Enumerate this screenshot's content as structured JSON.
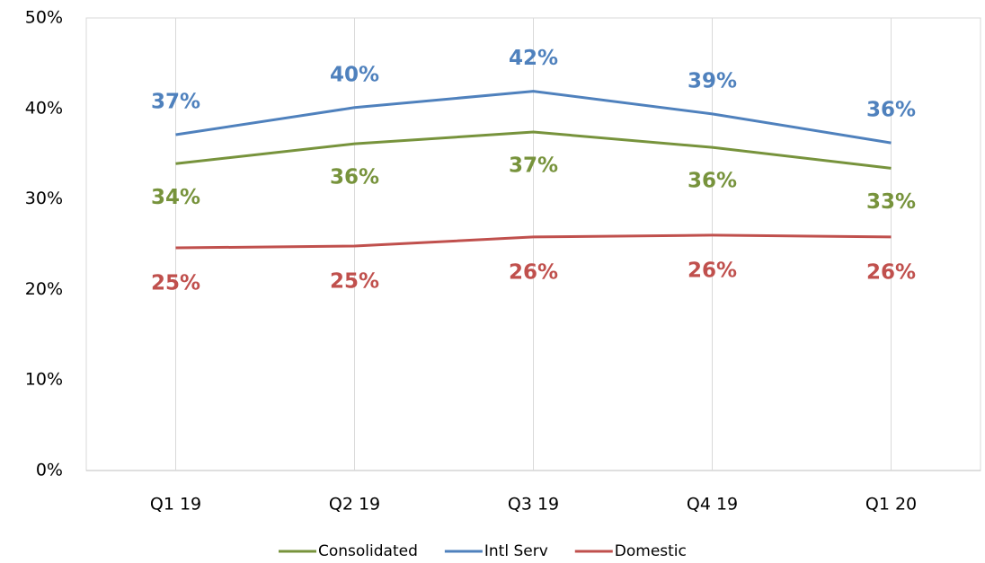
{
  "chart_data": {
    "type": "line",
    "categories": [
      "Q1 19",
      "Q2 19",
      "Q3 19",
      "Q4 19",
      "Q1 20"
    ],
    "series": [
      {
        "name": "Consolidated",
        "color": "#77933c",
        "values": [
          33.9,
          36.1,
          37.4,
          35.7,
          33.4
        ],
        "value_labels": [
          "34%",
          "36%",
          "37%",
          "36%",
          "33%"
        ]
      },
      {
        "name": "Intl Serv",
        "color": "#4f81bd",
        "values": [
          37.1,
          40.1,
          41.9,
          39.4,
          36.2
        ],
        "value_labels": [
          "37%",
          "40%",
          "42%",
          "39%",
          "36%"
        ]
      },
      {
        "name": "Domestic",
        "color": "#c0504d",
        "values": [
          24.6,
          24.8,
          25.8,
          26.0,
          25.8
        ],
        "value_labels": [
          "25%",
          "25%",
          "26%",
          "26%",
          "26%"
        ]
      }
    ],
    "ylim": [
      0,
      50
    ],
    "yticks": [
      {
        "value": 0,
        "label": "0%"
      },
      {
        "value": 10,
        "label": "10%"
      },
      {
        "value": 20,
        "label": "20%"
      },
      {
        "value": 30,
        "label": "30%"
      },
      {
        "value": 40,
        "label": "40%"
      },
      {
        "value": 50,
        "label": "50%"
      }
    ],
    "grid": true,
    "legend": "bottom"
  }
}
